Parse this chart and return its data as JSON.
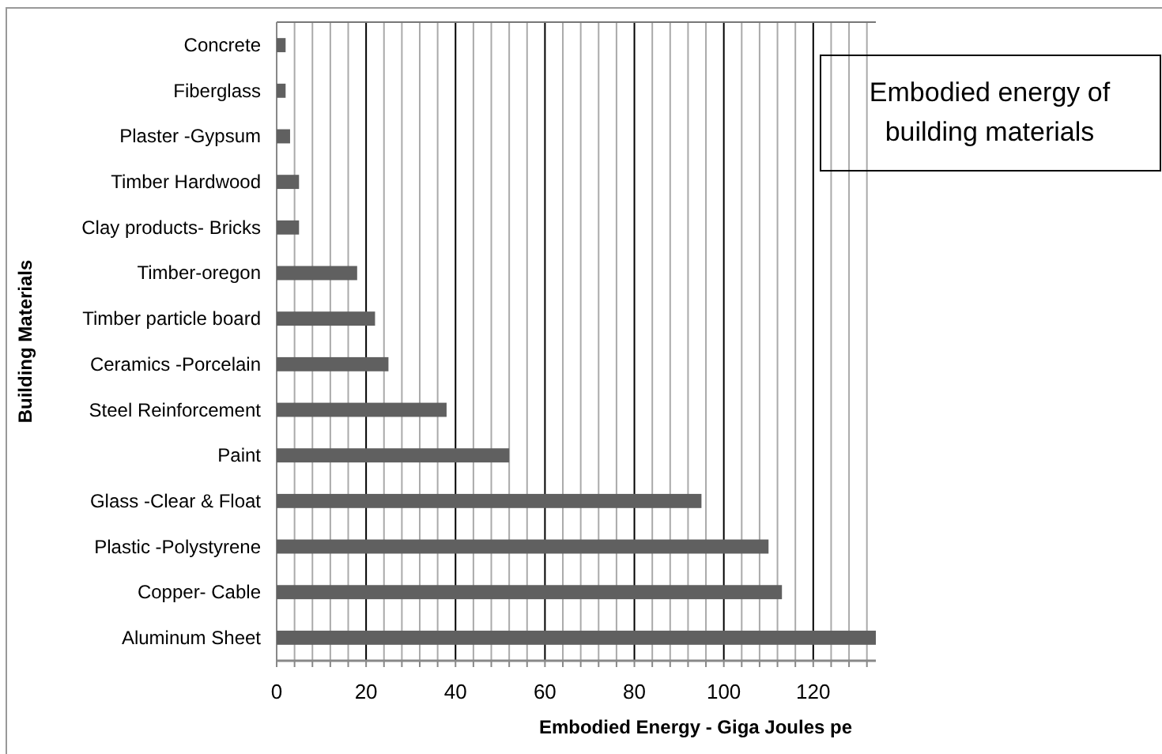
{
  "chart_data": {
    "type": "bar",
    "orientation": "horizontal",
    "title": "Embodied energy of building materials",
    "xlabel": "Embodied Energy - Giga Joules pe",
    "ylabel": "Building Materials",
    "categories": [
      "Concrete",
      "Fiberglass",
      "Plaster -Gypsum",
      "Timber Hardwood",
      "Clay products- Bricks",
      "Timber-oregon",
      "Timber particle board",
      "Ceramics -Porcelain",
      "Steel Reinforcement",
      "Paint",
      "Glass -Clear & Float",
      "Plastic -Polystyrene",
      "Copper- Cable",
      "Aluminum Sheet"
    ],
    "values": [
      2,
      2,
      3,
      5,
      5,
      18,
      22,
      25,
      38,
      52,
      95,
      110,
      113,
      134
    ],
    "color": "#606060",
    "xlim": [
      0,
      134
    ],
    "xticks": [
      0,
      {
        "value": 4,
        "label": null
      },
      {
        "value": 8,
        "label": null
      },
      {
        "value": 12,
        "label": null
      },
      {
        "value": 16,
        "label": null
      },
      20,
      {
        "value": 24,
        "label": null
      },
      {
        "value": 28,
        "label": null
      },
      {
        "value": 32,
        "label": null
      },
      {
        "value": 36,
        "label": null
      },
      40,
      {
        "value": 44,
        "label": null
      },
      {
        "value": 48,
        "label": null
      },
      {
        "value": 52,
        "label": null
      },
      {
        "value": 56,
        "label": null
      },
      60,
      {
        "value": 64,
        "label": null
      },
      {
        "value": 68,
        "label": null
      },
      {
        "value": 72,
        "label": null
      },
      {
        "value": 76,
        "label": null
      },
      80,
      {
        "value": 84,
        "label": null
      },
      {
        "value": 88,
        "label": null
      },
      {
        "value": 92,
        "label": null
      },
      {
        "value": 96,
        "label": null
      },
      100,
      {
        "value": 104,
        "label": null
      },
      {
        "value": 108,
        "label": null
      },
      {
        "value": 112,
        "label": null
      },
      {
        "value": 116,
        "label": null
      },
      120,
      {
        "value": 124,
        "label": null
      },
      {
        "value": 128,
        "label": null
      },
      {
        "value": 132,
        "label": null
      }
    ],
    "grid": "x"
  }
}
